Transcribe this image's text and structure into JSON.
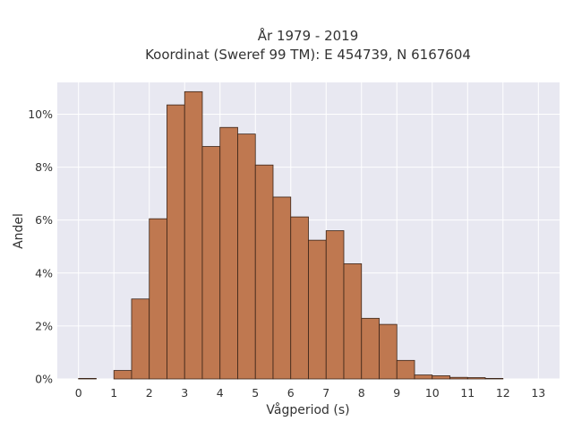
{
  "chart_data": {
    "type": "bar",
    "title": [
      "År 1979 - 2019",
      "Koordinat (Sweref 99 TM): E 454739, N 6167604"
    ],
    "xlabel": "Vågperiod (s)",
    "ylabel": "Andel",
    "bin_width": 0.5,
    "bins_start": [
      0,
      0.5,
      1,
      1.5,
      2,
      2.5,
      3,
      3.5,
      4,
      4.5,
      5,
      5.5,
      6,
      6.5,
      7,
      7.5,
      8,
      8.5,
      9,
      9.5,
      10,
      10.5,
      11,
      11.5,
      12,
      12.5,
      13
    ],
    "values": [
      0.02,
      0.0,
      0.32,
      3.02,
      6.05,
      10.35,
      10.85,
      8.78,
      9.5,
      9.25,
      8.08,
      6.87,
      6.12,
      5.24,
      5.6,
      4.35,
      2.29,
      2.06,
      0.7,
      0.15,
      0.12,
      0.06,
      0.05,
      0.02,
      0.0,
      0.0,
      0.0
    ],
    "xlim": [
      -0.6,
      13.6
    ],
    "ylim": [
      0,
      11.2
    ],
    "x_ticks": [
      0,
      1,
      2,
      3,
      4,
      5,
      6,
      7,
      8,
      9,
      10,
      11,
      12,
      13
    ],
    "x_tick_labels": [
      "0",
      "1",
      "2",
      "3",
      "4",
      "5",
      "6",
      "7",
      "8",
      "9",
      "10",
      "11",
      "12",
      "13"
    ],
    "y_ticks": [
      0,
      2,
      4,
      6,
      8,
      10
    ],
    "y_tick_labels": [
      "0%",
      "2%",
      "4%",
      "6%",
      "8%",
      "10%"
    ],
    "grid": true,
    "bar_color": "#bf7850",
    "bar_edge_color": "#3a2418",
    "background_color": "#e8e8f1",
    "grid_color": "#ffffff"
  }
}
